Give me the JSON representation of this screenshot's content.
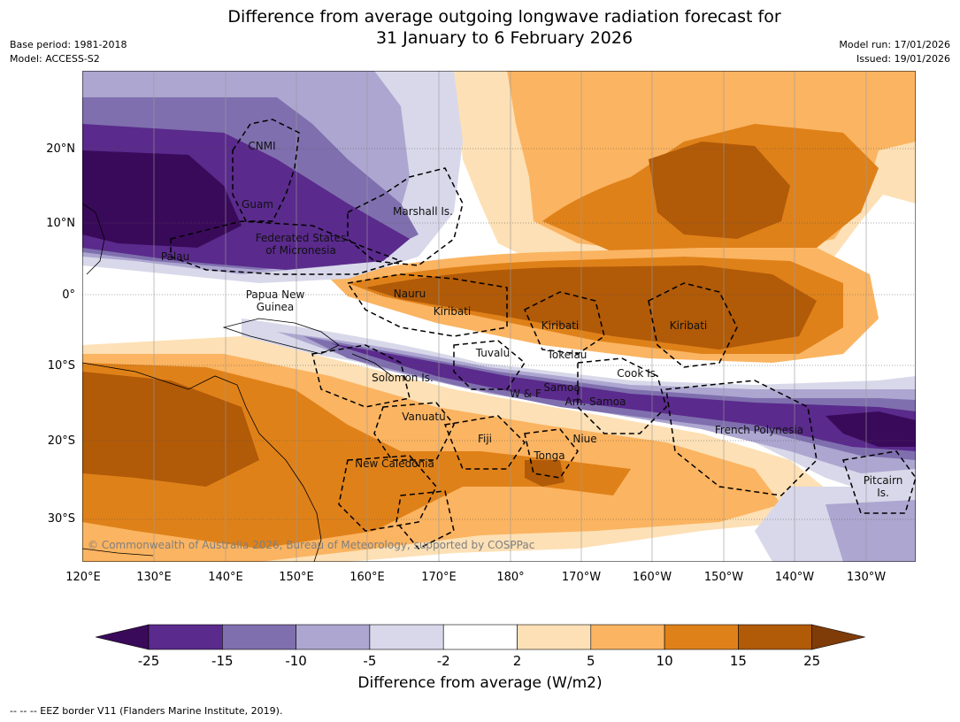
{
  "title": {
    "line1": "Difference from average outgoing longwave radiation forecast for",
    "line2": "31 January to 6 February 2026"
  },
  "meta": {
    "base_period": "Base period: 1981-2018",
    "model": "Model: ACCESS-S2",
    "model_run": "Model run: 17/01/2026",
    "issued": "Issued: 19/01/2026"
  },
  "axes": {
    "lat_labels": [
      "20°N",
      "10°N",
      "0°",
      "10°S",
      "20°S",
      "30°S"
    ],
    "lon_labels": [
      "120°E",
      "130°E",
      "140°E",
      "150°E",
      "160°E",
      "170°E",
      "180°",
      "170°W",
      "160°W",
      "150°W",
      "140°W",
      "130°W"
    ]
  },
  "places": [
    {
      "name": "CNMI"
    },
    {
      "name": "Guam"
    },
    {
      "name": "Marshall Is."
    },
    {
      "name": "Federated States"
    },
    {
      "name": "of Micronesia"
    },
    {
      "name": "Palau"
    },
    {
      "name": "Papua New"
    },
    {
      "name": "Guinea"
    },
    {
      "name": "Nauru"
    },
    {
      "name": "Kiribati"
    },
    {
      "name": "Kiribati"
    },
    {
      "name": "Kiribati"
    },
    {
      "name": "Tuvalu"
    },
    {
      "name": "Tokelau"
    },
    {
      "name": "Cook Is."
    },
    {
      "name": "Solomon Is."
    },
    {
      "name": "W & F"
    },
    {
      "name": "Samoa"
    },
    {
      "name": "Am. Samoa"
    },
    {
      "name": "Vanuatu"
    },
    {
      "name": "Fiji"
    },
    {
      "name": "Niue"
    },
    {
      "name": "French Polynesia"
    },
    {
      "name": "Tonga"
    },
    {
      "name": "New Caledonia"
    },
    {
      "name": "Pitcairn"
    },
    {
      "name": "Is."
    }
  ],
  "copyright": "© Commonwealth of Australia 2026, Bureau of Meteorology, supported by COSPPac",
  "colorbar": {
    "ticks": [
      "-25",
      "-15",
      "-10",
      "-5",
      "-2",
      "2",
      "5",
      "10",
      "15",
      "25"
    ],
    "colors": [
      "#5a2a8c",
      "#7f6fae",
      "#aca6d0",
      "#d8d8ea",
      "#ffffff",
      "#fde0b5",
      "#fbb461",
      "#df8119",
      "#b15a07"
    ],
    "under_color": "#3a0a5a",
    "over_color": "#7f3b08",
    "label": "Difference from average (W/m2)"
  },
  "legend": "-- -- -- EEZ border V11 (Flanders Marine Institute, 2019)."
}
